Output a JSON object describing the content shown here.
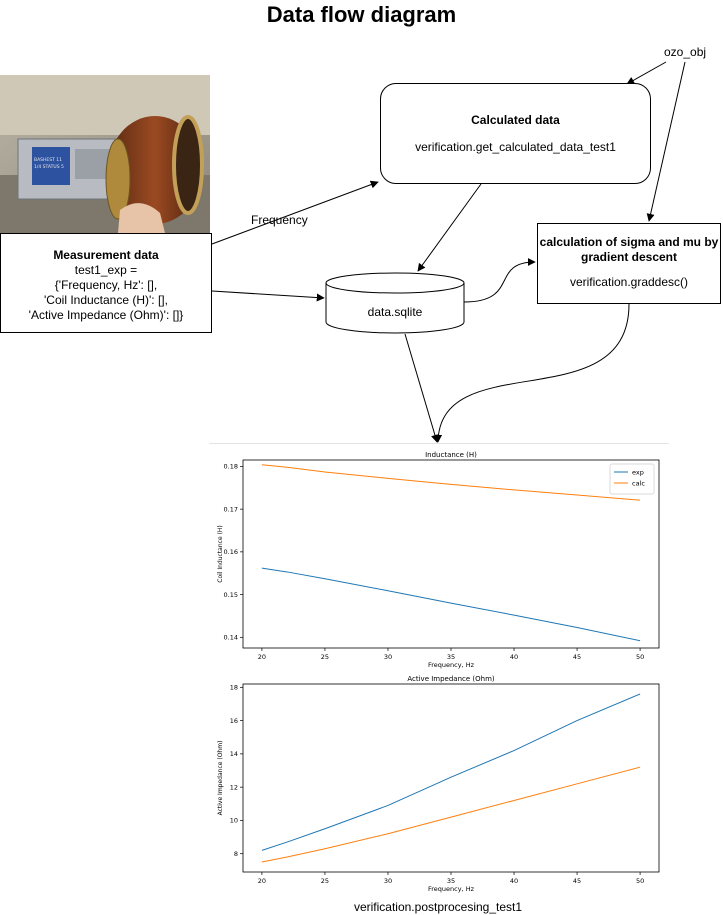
{
  "title": "Data flow diagram",
  "nodes": {
    "measurement": {
      "heading": "Measurement data",
      "lines": [
        "test1_exp =",
        "{'Frequency, Hz': [],",
        "'Coil Inductance (H)': [],",
        "'Active Impedance (Ohm)': []}"
      ]
    },
    "calculated": {
      "heading": "Calculated data",
      "func": "verification.get_calculated_data_test1"
    },
    "gradient": {
      "heading": "calculation of sigma and mu by gradient descent",
      "func": "verification.graddesc()"
    },
    "database": {
      "label": "data.sqlite"
    },
    "ozo": {
      "label": "ozo_obj"
    }
  },
  "edges": {
    "frequency_label": "Frequency"
  },
  "postprocessing_label": "verification.postprocesing_test1",
  "photo": {
    "screen_text": [
      "BASHEST 11",
      "1/4 STATUS 5"
    ]
  },
  "chart_data": [
    {
      "type": "line",
      "title": "Inductance (H)",
      "xlabel": "Frequency, Hz",
      "ylabel": "Coil Inductance (H)",
      "xlim": [
        18.5,
        51.5
      ],
      "ylim": [
        0.1375,
        0.1815
      ],
      "xticks": [
        20,
        25,
        30,
        35,
        40,
        45,
        50
      ],
      "yticks": [
        0.14,
        0.15,
        0.16,
        0.17,
        0.18
      ],
      "ytick_labels": [
        "0.14",
        "0.15",
        "0.16",
        "0.17",
        "0.18"
      ],
      "legend": {
        "placement": "top-right"
      },
      "series": [
        {
          "name": "exp",
          "color": "#1f77b4",
          "x": [
            20,
            22,
            25,
            30,
            35,
            40,
            45,
            50
          ],
          "y": [
            0.1562,
            0.1553,
            0.1537,
            0.1509,
            0.148,
            0.1452,
            0.1423,
            0.1392
          ]
        },
        {
          "name": "calc",
          "color": "#ff7f0e",
          "x": [
            20,
            22,
            25,
            30,
            35,
            40,
            45,
            50
          ],
          "y": [
            0.1804,
            0.1798,
            0.1787,
            0.1772,
            0.1758,
            0.1745,
            0.1733,
            0.1721
          ]
        }
      ]
    },
    {
      "type": "line",
      "title": "Active Impedance (Ohm)",
      "xlabel": "Frequency, Hz",
      "ylabel": "Active Impedance (Ohm)",
      "xlim": [
        18.5,
        51.5
      ],
      "ylim": [
        6.9,
        18.2
      ],
      "xticks": [
        20,
        25,
        30,
        35,
        40,
        45,
        50
      ],
      "yticks": [
        8,
        10,
        12,
        14,
        16,
        18
      ],
      "ytick_labels": [
        "8",
        "10",
        "12",
        "14",
        "16",
        "18"
      ],
      "series": [
        {
          "color": "#1f77b4",
          "x": [
            20,
            22,
            25,
            30,
            35,
            40,
            45,
            50
          ],
          "y": [
            8.2,
            8.7,
            9.5,
            10.9,
            12.6,
            14.2,
            16.0,
            17.6
          ]
        },
        {
          "color": "#ff7f0e",
          "x": [
            20,
            22,
            25,
            30,
            35,
            40,
            45,
            50
          ],
          "y": [
            7.5,
            7.8,
            8.3,
            9.2,
            10.2,
            11.2,
            12.2,
            13.2
          ]
        }
      ]
    }
  ]
}
